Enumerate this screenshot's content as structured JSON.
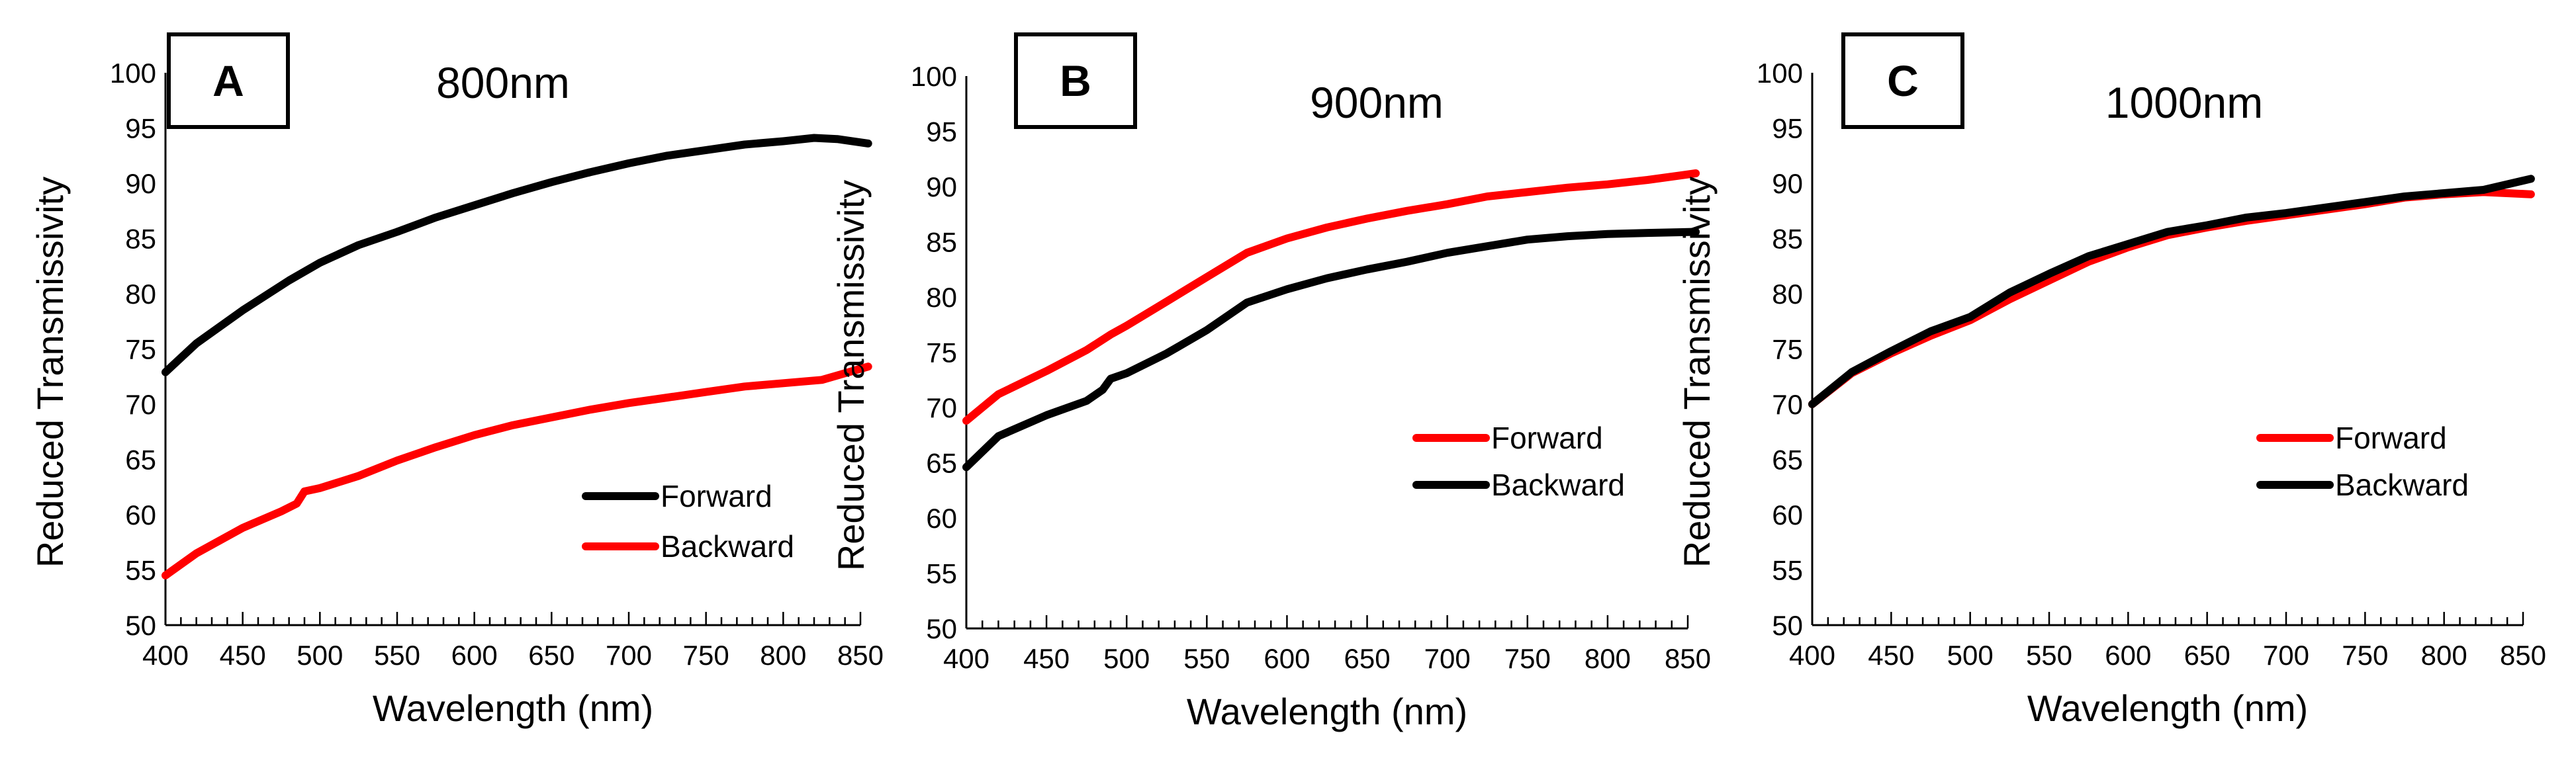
{
  "chart_data": [
    {
      "type": "line",
      "panel_label": "A",
      "title": "800nm",
      "xlabel": "Wavelength (nm)",
      "ylabel": "Reduced Transmissivity",
      "xlim": [
        400,
        850
      ],
      "ylim": [
        50,
        100
      ],
      "xticks": [
        400,
        450,
        500,
        550,
        600,
        650,
        700,
        750,
        800,
        850
      ],
      "yticks": [
        50,
        55,
        60,
        65,
        70,
        75,
        80,
        85,
        90,
        95,
        100
      ],
      "grid": false,
      "legend_position": "bottom-right",
      "series": [
        {
          "name": "Forward",
          "color": "#000000",
          "x": [
            400,
            420,
            450,
            480,
            500,
            525,
            550,
            575,
            600,
            625,
            650,
            675,
            700,
            725,
            750,
            775,
            800,
            820,
            835,
            855
          ],
          "y": [
            72.9,
            75.5,
            78.5,
            81.2,
            82.8,
            84.4,
            85.6,
            86.9,
            88.0,
            89.1,
            90.1,
            91.0,
            91.8,
            92.5,
            93.0,
            93.5,
            93.8,
            94.1,
            94.0,
            93.6
          ]
        },
        {
          "name": "Backward",
          "color": "#ff0000",
          "x": [
            400,
            420,
            450,
            475,
            485,
            490,
            500,
            525,
            550,
            575,
            600,
            625,
            650,
            675,
            700,
            725,
            750,
            775,
            800,
            825,
            855
          ],
          "y": [
            54.5,
            56.5,
            58.8,
            60.3,
            61.0,
            62.1,
            62.4,
            63.5,
            64.9,
            66.1,
            67.2,
            68.1,
            68.8,
            69.5,
            70.1,
            70.6,
            71.1,
            71.6,
            71.9,
            72.2,
            73.4
          ]
        }
      ]
    },
    {
      "type": "line",
      "panel_label": "B",
      "title": "900nm",
      "xlabel": "Wavelength (nm)",
      "ylabel": "Reduced Transmissivity",
      "xlim": [
        400,
        850
      ],
      "ylim": [
        50,
        100
      ],
      "xticks": [
        400,
        450,
        500,
        550,
        600,
        650,
        700,
        750,
        800,
        850
      ],
      "yticks": [
        50,
        55,
        60,
        65,
        70,
        75,
        80,
        85,
        90,
        95,
        100
      ],
      "grid": false,
      "legend_position": "middle-right",
      "series": [
        {
          "name": "Forward",
          "color": "#ff0000",
          "x": [
            400,
            420,
            450,
            475,
            490,
            500,
            525,
            550,
            575,
            600,
            625,
            650,
            675,
            700,
            725,
            750,
            775,
            800,
            825,
            855
          ],
          "y": [
            68.8,
            71.2,
            73.3,
            75.2,
            76.6,
            77.4,
            79.6,
            81.8,
            84.0,
            85.3,
            86.3,
            87.1,
            87.8,
            88.4,
            89.1,
            89.5,
            89.9,
            90.2,
            90.6,
            91.2
          ]
        },
        {
          "name": "Backward",
          "color": "#000000",
          "x": [
            400,
            420,
            450,
            475,
            485,
            490,
            500,
            525,
            550,
            575,
            600,
            625,
            650,
            675,
            700,
            725,
            750,
            775,
            800,
            825,
            855
          ],
          "y": [
            64.6,
            67.4,
            69.3,
            70.6,
            71.6,
            72.6,
            73.1,
            74.9,
            77.0,
            79.5,
            80.7,
            81.7,
            82.5,
            83.2,
            84.0,
            84.6,
            85.2,
            85.5,
            85.7,
            85.8,
            85.9
          ]
        }
      ]
    },
    {
      "type": "line",
      "panel_label": "C",
      "title": "1000nm",
      "xlabel": "Wavelength (nm)",
      "ylabel": "Reduced Transmissivity",
      "xlim": [
        400,
        850
      ],
      "ylim": [
        50,
        100
      ],
      "xticks": [
        400,
        450,
        500,
        550,
        600,
        650,
        700,
        750,
        800,
        850
      ],
      "yticks": [
        50,
        55,
        60,
        65,
        70,
        75,
        80,
        85,
        90,
        95,
        100
      ],
      "grid": false,
      "legend_position": "middle-right",
      "series": [
        {
          "name": "Forward",
          "color": "#ff0000",
          "x": [
            400,
            425,
            450,
            475,
            500,
            525,
            550,
            575,
            600,
            625,
            650,
            675,
            700,
            725,
            750,
            775,
            800,
            825,
            855
          ],
          "y": [
            70.0,
            72.8,
            74.6,
            76.2,
            77.6,
            79.5,
            81.2,
            82.9,
            84.2,
            85.3,
            86.0,
            86.6,
            87.1,
            87.6,
            88.1,
            88.7,
            89.0,
            89.2,
            89.0
          ]
        },
        {
          "name": "Backward",
          "color": "#000000",
          "x": [
            400,
            425,
            450,
            475,
            500,
            525,
            550,
            575,
            600,
            625,
            650,
            675,
            700,
            725,
            750,
            775,
            800,
            825,
            855
          ],
          "y": [
            70.0,
            72.9,
            74.8,
            76.6,
            77.9,
            80.1,
            81.8,
            83.4,
            84.5,
            85.6,
            86.2,
            86.9,
            87.3,
            87.8,
            88.3,
            88.8,
            89.1,
            89.4,
            90.4
          ]
        }
      ]
    }
  ]
}
